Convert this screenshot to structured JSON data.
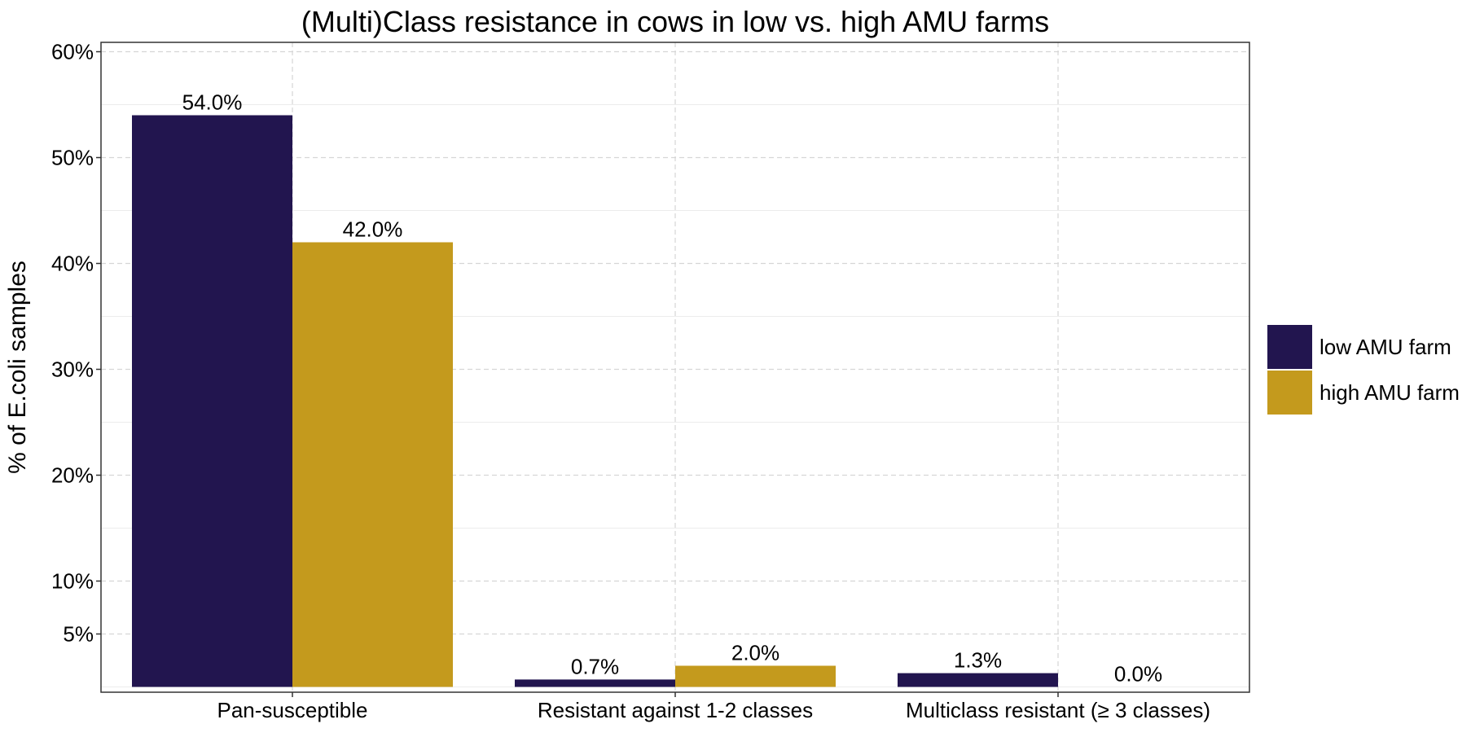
{
  "chart_data": {
    "type": "bar",
    "title": "(Multi)Class resistance in cows in low vs. high AMU farms",
    "xlabel": "",
    "ylabel": "% of E.coli samples",
    "categories": [
      "Pan-susceptible",
      "Resistant against 1-2 classes",
      "Multiclass resistant (≥ 3 classes)"
    ],
    "series": [
      {
        "name": "low AMU farm",
        "color": "#22154f",
        "values": [
          54.0,
          0.7,
          1.3
        ],
        "labels": [
          "54.0%",
          "0.7%",
          "1.3%"
        ]
      },
      {
        "name": "high AMU farm",
        "color": "#c49a1d",
        "values": [
          42.0,
          2.0,
          0.0
        ],
        "labels": [
          "42.0%",
          "2.0%",
          "0.0%"
        ]
      }
    ],
    "ylim": [
      0,
      60
    ],
    "yticks": [
      5,
      10,
      20,
      30,
      40,
      50,
      60
    ],
    "ytick_labels": [
      "5%",
      "10%",
      "20%",
      "30%",
      "40%",
      "50%",
      "60%"
    ],
    "grid": true,
    "legend_position": "right"
  }
}
